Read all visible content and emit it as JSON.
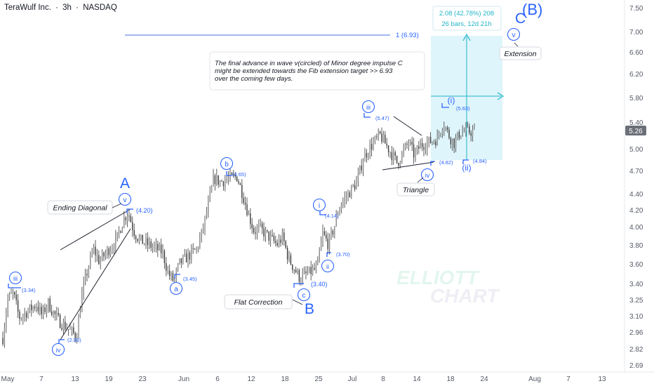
{
  "header": {
    "symbol": "TeraWulf Inc.",
    "sep1": "·",
    "interval": "3h",
    "sep2": "·",
    "exchange": "NASDAQ"
  },
  "chart_data": {
    "type": "candlestick",
    "title": "TeraWulf Inc. · 3h · NASDAQ",
    "ylim": [
      2.66,
      7.62
    ],
    "y_ticks": [
      "7.50",
      "7.00",
      "6.60",
      "6.20",
      "5.80",
      "5.40",
      "5.00",
      "4.70",
      "4.40",
      "4.20",
      "4.00",
      "3.80",
      "3.60",
      "3.40",
      "3.25",
      "3.10",
      "2.96",
      "2.82",
      "2.69"
    ],
    "x_ticks": [
      "May",
      "7",
      "13",
      "19",
      "23",
      "Jun",
      "6",
      "12",
      "18",
      "25",
      "Jul",
      "8",
      "14",
      "18",
      "24",
      "Aug",
      "7",
      "13"
    ],
    "last_price": "5.26",
    "price_path": [
      [
        "Apr 30",
        2.85
      ],
      [
        "May 1",
        3.25
      ],
      [
        "May 2",
        3.3
      ],
      [
        "May 3",
        3.08
      ],
      [
        "May 6",
        3.2
      ],
      [
        "May 7",
        3.1
      ],
      [
        "May 8",
        3.22
      ],
      [
        "May 9",
        3.12
      ],
      [
        "May 10",
        3.05
      ],
      [
        "May 13",
        2.92
      ],
      [
        "May 14",
        3.3
      ],
      [
        "May 15",
        3.55
      ],
      [
        "May 16",
        3.75
      ],
      [
        "May 17",
        3.62
      ],
      [
        "May 20",
        3.85
      ],
      [
        "May 21",
        4.05
      ],
      [
        "May 22",
        4.18
      ],
      [
        "May 23",
        3.95
      ],
      [
        "May 24",
        3.85
      ],
      [
        "May 28",
        3.72
      ],
      [
        "May 29",
        3.5
      ],
      [
        "May 30",
        3.42
      ],
      [
        "May 31",
        3.6
      ],
      [
        "Jun 3",
        3.75
      ],
      [
        "Jun 4",
        3.95
      ],
      [
        "Jun 5",
        4.25
      ],
      [
        "Jun 6",
        4.6
      ],
      [
        "Jun 7",
        4.55
      ],
      [
        "Jun 10",
        4.62
      ],
      [
        "Jun 11",
        4.4
      ],
      [
        "Jun 12",
        4.15
      ],
      [
        "Jun 13",
        3.95
      ],
      [
        "Jun 14",
        3.98
      ],
      [
        "Jun 17",
        3.8
      ],
      [
        "Jun 18",
        3.88
      ],
      [
        "Jun 19",
        3.65
      ],
      [
        "Jun 20",
        3.55
      ],
      [
        "Jun 21",
        3.45
      ],
      [
        "Jun 24",
        3.55
      ],
      [
        "Jun 25",
        3.92
      ],
      [
        "Jun 26",
        3.8
      ],
      [
        "Jun 27",
        4.0
      ],
      [
        "Jun 28",
        4.25
      ],
      [
        "Jul 1",
        4.55
      ],
      [
        "Jul 2",
        4.85
      ],
      [
        "Jul 3",
        5.0
      ],
      [
        "Jul 5",
        5.2
      ],
      [
        "Jul 8",
        4.8
      ],
      [
        "Jul 9",
        4.95
      ],
      [
        "Jul 10",
        5.1
      ],
      [
        "Jul 11",
        4.9
      ],
      [
        "Jul 12",
        5.05
      ],
      [
        "Jul 15",
        5.15
      ],
      [
        "Jul 16",
        5.4
      ],
      [
        "Jul 17",
        5.2
      ],
      [
        "Jul 18",
        5.08
      ],
      [
        "Jul 19",
        5.25
      ],
      [
        "Jul 22",
        5.26
      ]
    ],
    "annotations": {
      "wave_labels": [
        {
          "text": "iii",
          "price": "(3.34)"
        },
        {
          "text": "iv",
          "price": "(2.89)"
        },
        {
          "text": "v",
          "price": "(4.20)"
        },
        {
          "text": "A"
        },
        {
          "text": "a",
          "price": "(3.45)"
        },
        {
          "text": "b",
          "price": "(4.65)"
        },
        {
          "text": "c",
          "price": "(3.40)"
        },
        {
          "text": "B"
        },
        {
          "text": "i",
          "price": "(4.14)"
        },
        {
          "text": "ii",
          "price": "(3.70)"
        },
        {
          "text": "iii",
          "price": "(5.47)"
        },
        {
          "text": "iv",
          "price": "(4.82)"
        },
        {
          "text": "(i)",
          "price": "(5.63)"
        },
        {
          "text": "(ii)",
          "price": "(4.84)"
        },
        {
          "text": "v"
        },
        {
          "text": "C"
        },
        {
          "text": "(B)"
        }
      ],
      "callouts": [
        "Ending Diagonal",
        "Flat Correction",
        "Triangle",
        "Extension"
      ],
      "fib_label": "1 (6.93)",
      "note_lines": [
        "The final advance in wave v(circled) of Minor degree impulse C",
        " might be extended towards the Fib extension target >> 6.93",
        "over the coming few days."
      ],
      "measure_line1": "2.08 (42.78%) 208",
      "measure_line2": "26 bars, 12d 21h",
      "watermark_line1": "ELLIOTT",
      "watermark_line2": "CHART"
    }
  },
  "colors": {
    "candle": "#4a4a4a",
    "wave_blue": "#2962ff",
    "measure_teal": "#22b5c8",
    "measure_fill": "#d8f3fa",
    "axis_text": "#555a66",
    "last_price_bg": "#6b6f78"
  }
}
